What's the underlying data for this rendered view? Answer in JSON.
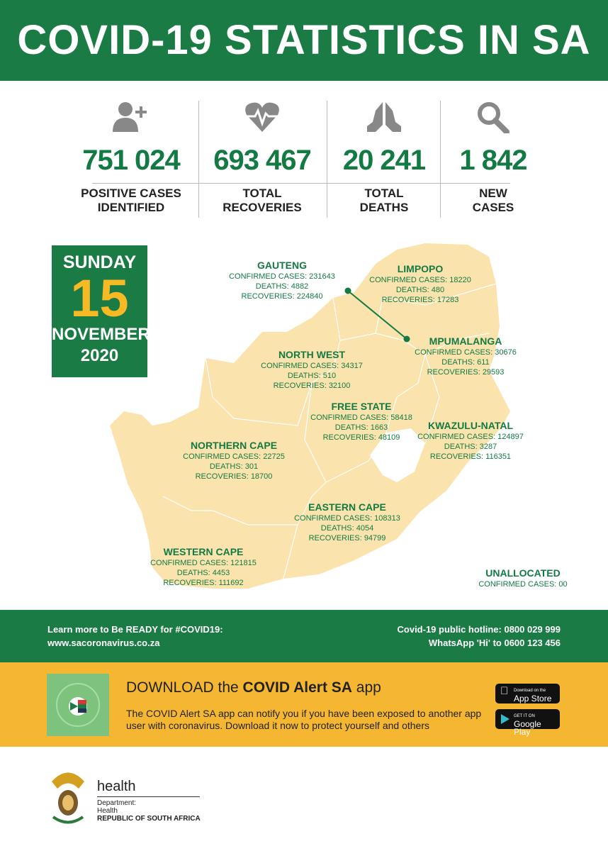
{
  "title": "COVID-19 STATISTICS IN SA",
  "stats": [
    {
      "icon": "add-user-icon",
      "value": "751 024",
      "label1": "POSITIVE CASES",
      "label2": "IDENTIFIED"
    },
    {
      "icon": "heartbeat-icon",
      "value": "693 467",
      "label1": "TOTAL",
      "label2": "RECOVERIES"
    },
    {
      "icon": "praying-hands-icon",
      "value": "20 241",
      "label1": "TOTAL",
      "label2": "DEATHS"
    },
    {
      "icon": "search-icon",
      "value": "1 842",
      "label1": "NEW",
      "label2": "CASES"
    }
  ],
  "date": {
    "weekday": "SUNDAY",
    "day": "15",
    "month": "NOVEMBER",
    "year": "2020"
  },
  "provinces": [
    {
      "name": "GAUTENG",
      "cases": "CONFIRMED CASES: 231643",
      "deaths": "DEATHS: 4882",
      "recoveries": "RECOVERIES: 224840"
    },
    {
      "name": "LIMPOPO",
      "cases": "CONFIRMED CASES: 18220",
      "deaths": "DEATHS: 480",
      "recoveries": "RECOVERIES: 17283"
    },
    {
      "name": "MPUMALANGA",
      "cases": "CONFIRMED CASES: 30676",
      "deaths": "DEATHS: 611",
      "recoveries": "RECOVERIES: 29593"
    },
    {
      "name": "NORTH WEST",
      "cases": "CONFIRMED CASES: 34317",
      "deaths": "DEATHS: 510",
      "recoveries": "RECOVERIES: 32100"
    },
    {
      "name": "FREE STATE",
      "cases": "CONFIRMED CASES: 58418",
      "deaths": "DEATHS: 1663",
      "recoveries": "RECOVERIES: 48109"
    },
    {
      "name": "KWAZULU-NATAL",
      "cases": "CONFIRMED CASES: 124897",
      "deaths": "DEATHS: 3287",
      "recoveries": "RECOVERIES: 116351"
    },
    {
      "name": "NORTHERN CAPE",
      "cases": "CONFIRMED CASES: 22725",
      "deaths": "DEATHS: 301",
      "recoveries": "RECOVERIES: 18700"
    },
    {
      "name": "EASTERN CAPE",
      "cases": "CONFIRMED CASES: 108313",
      "deaths": "DEATHS: 4054",
      "recoveries": "RECOVERIES: 94799"
    },
    {
      "name": "WESTERN CAPE",
      "cases": "CONFIRMED CASES: 121815",
      "deaths": "DEATHS: 4453",
      "recoveries": "RECOVERIES: 111692"
    }
  ],
  "unallocated": {
    "name": "UNALLOCATED",
    "cases": "CONFIRMED CASES: 00"
  },
  "footer": {
    "learn1": "Learn more to Be READY for #COVID19:",
    "learn2": "www.sacoronavirus.co.za",
    "hotline": "Covid-19 public hotline: 0800 029 999",
    "whatsapp": "WhatsApp 'Hi' to 0600 123 456"
  },
  "app": {
    "heading_pre": "DOWNLOAD the ",
    "heading_bold": "COVID Alert SA",
    "heading_post": " app",
    "desc1": "The COVID Alert SA app can notify you if you have been exposed to another app",
    "desc2": "user with coronavirus. Download it now to protect yourself and others",
    "appstore_small": "Download on the",
    "appstore": "App Store",
    "gplay_small": "GET IT ON",
    "gplay": "Google Play"
  },
  "dept": {
    "health": "health",
    "line1": "Department:",
    "line2": "Health",
    "line3": "REPUBLIC OF SOUTH AFRICA"
  },
  "colors": {
    "green": "#1b7b45",
    "yellow": "#f5b731",
    "map": "#fbe3ae"
  }
}
